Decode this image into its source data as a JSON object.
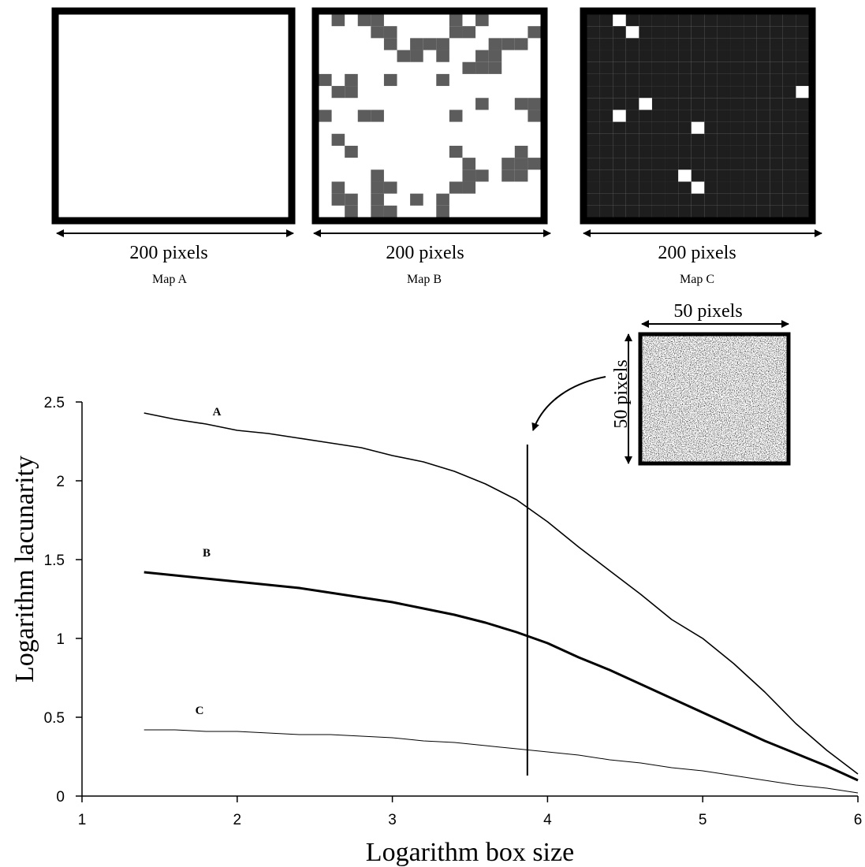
{
  "maps": [
    {
      "title": "Map A",
      "size_label": "200 pixels",
      "fill": "#8a8a8a",
      "background": "#ffffff"
    },
    {
      "title": "Map B",
      "size_label": "200 pixels",
      "fill": "#5c5c5c",
      "background": "#ffffff"
    },
    {
      "title": "Map C",
      "size_label": "200 pixels",
      "fill": "#1e1e1e",
      "background": "#ffffff"
    }
  ],
  "inset": {
    "width_label": "50 pixels",
    "height_label": "50 pixels"
  },
  "chart_data": {
    "type": "line",
    "title": "",
    "xlabel": "Logarithm box size",
    "ylabel": "Logarithm lacunarity",
    "xlim": [
      1,
      6
    ],
    "ylim": [
      0,
      2.5
    ],
    "xticks": [
      "1",
      "2",
      "3",
      "4",
      "5",
      "6"
    ],
    "yticks": [
      "0",
      "0.5",
      "1",
      "1.5",
      "2",
      "2.5"
    ],
    "grid": false,
    "series": [
      {
        "name": "A",
        "color": "#000000",
        "x": [
          1.4,
          1.6,
          1.8,
          2.0,
          2.2,
          2.4,
          2.6,
          2.8,
          3.0,
          3.2,
          3.4,
          3.6,
          3.8,
          4.0,
          4.2,
          4.4,
          4.6,
          4.8,
          5.0,
          5.2,
          5.4,
          5.6,
          5.8,
          6.0
        ],
        "y": [
          2.43,
          2.39,
          2.36,
          2.32,
          2.3,
          2.27,
          2.24,
          2.21,
          2.16,
          2.12,
          2.06,
          1.98,
          1.88,
          1.74,
          1.58,
          1.43,
          1.28,
          1.12,
          1.0,
          0.84,
          0.66,
          0.46,
          0.29,
          0.14
        ]
      },
      {
        "name": "B",
        "color": "#000000",
        "x": [
          1.4,
          1.6,
          1.8,
          2.0,
          2.2,
          2.4,
          2.6,
          2.8,
          3.0,
          3.2,
          3.4,
          3.6,
          3.8,
          4.0,
          4.2,
          4.4,
          4.6,
          4.8,
          5.0,
          5.2,
          5.4,
          5.6,
          5.8,
          6.0
        ],
        "y": [
          1.42,
          1.4,
          1.38,
          1.36,
          1.34,
          1.32,
          1.29,
          1.26,
          1.23,
          1.19,
          1.15,
          1.1,
          1.04,
          0.97,
          0.88,
          0.8,
          0.71,
          0.62,
          0.53,
          0.44,
          0.35,
          0.27,
          0.19,
          0.1
        ]
      },
      {
        "name": "C",
        "color": "#000000",
        "x": [
          1.4,
          1.6,
          1.8,
          2.0,
          2.2,
          2.4,
          2.6,
          2.8,
          3.0,
          3.2,
          3.4,
          3.6,
          3.8,
          4.0,
          4.2,
          4.4,
          4.6,
          4.8,
          5.0,
          5.2,
          5.4,
          5.6,
          5.8,
          6.0
        ],
        "y": [
          0.42,
          0.42,
          0.41,
          0.41,
          0.4,
          0.39,
          0.39,
          0.38,
          0.37,
          0.35,
          0.34,
          0.32,
          0.3,
          0.28,
          0.26,
          0.23,
          0.21,
          0.18,
          0.16,
          0.13,
          0.1,
          0.07,
          0.05,
          0.02
        ]
      }
    ],
    "marker_line": {
      "x": 3.87,
      "y_from": 0.13,
      "y_to": 2.23
    }
  }
}
